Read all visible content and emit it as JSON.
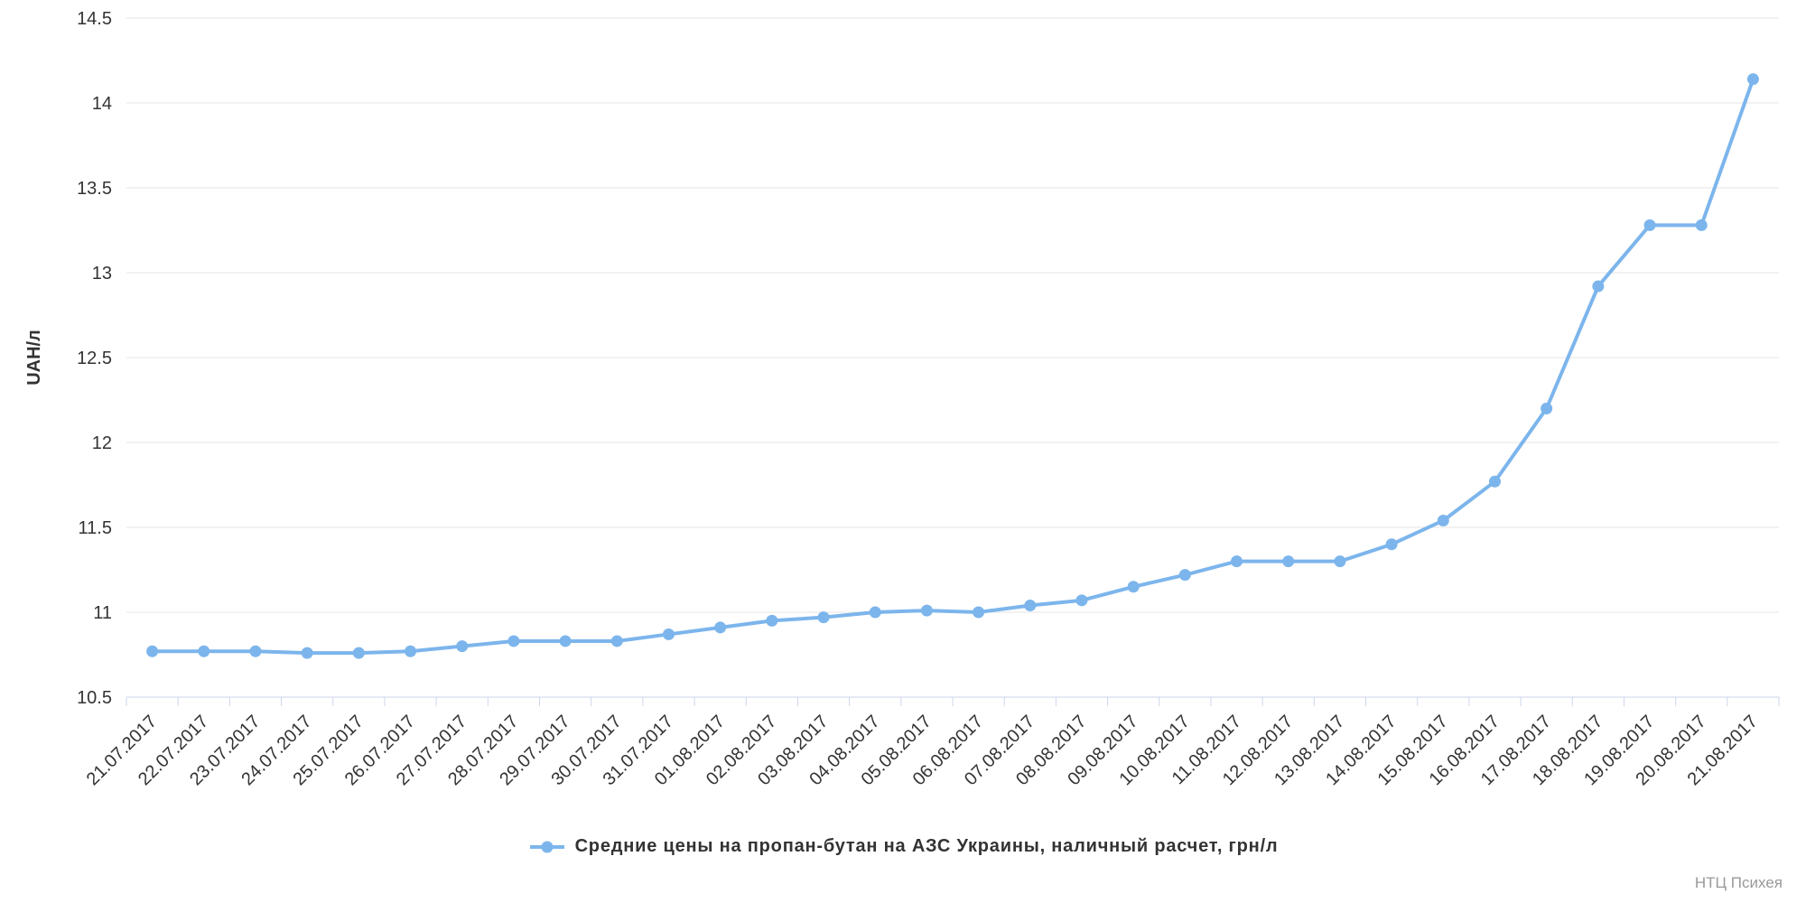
{
  "chart_data": {
    "type": "line",
    "title": "",
    "xlabel": "",
    "ylabel": "UAH/л",
    "ylim": [
      10.5,
      14.5
    ],
    "yticks": [
      10.5,
      11,
      11.5,
      12,
      12.5,
      13,
      13.5,
      14,
      14.5
    ],
    "grid": true,
    "legend_position": "bottom-center",
    "categories": [
      "21.07.2017",
      "22.07.2017",
      "23.07.2017",
      "24.07.2017",
      "25.07.2017",
      "26.07.2017",
      "27.07.2017",
      "28.07.2017",
      "29.07.2017",
      "30.07.2017",
      "31.07.2017",
      "01.08.2017",
      "02.08.2017",
      "03.08.2017",
      "04.08.2017",
      "05.08.2017",
      "06.08.2017",
      "07.08.2017",
      "08.08.2017",
      "09.08.2017",
      "10.08.2017",
      "11.08.2017",
      "12.08.2017",
      "13.08.2017",
      "14.08.2017",
      "15.08.2017",
      "16.08.2017",
      "17.08.2017",
      "18.08.2017",
      "19.08.2017",
      "20.08.2017",
      "21.08.2017"
    ],
    "series": [
      {
        "name": "Средние цены на пропан-бутан на АЗС Украины, наличный расчет, грн/л",
        "color": "#7cb5ec",
        "values": [
          10.77,
          10.77,
          10.77,
          10.76,
          10.76,
          10.77,
          10.8,
          10.83,
          10.83,
          10.83,
          10.87,
          10.91,
          10.95,
          10.97,
          11.0,
          11.01,
          11.0,
          11.04,
          11.07,
          11.15,
          11.22,
          11.3,
          11.3,
          11.3,
          11.4,
          11.54,
          11.77,
          12.2,
          12.92,
          13.28,
          13.28,
          14.14
        ]
      }
    ]
  },
  "colors": {
    "series": "#7cb5ec",
    "grid": "#e6e6e6",
    "axis": "#ccd6eb",
    "tick_text": "#333333",
    "watermark": "#999999"
  },
  "watermark": "НТЦ Психея"
}
